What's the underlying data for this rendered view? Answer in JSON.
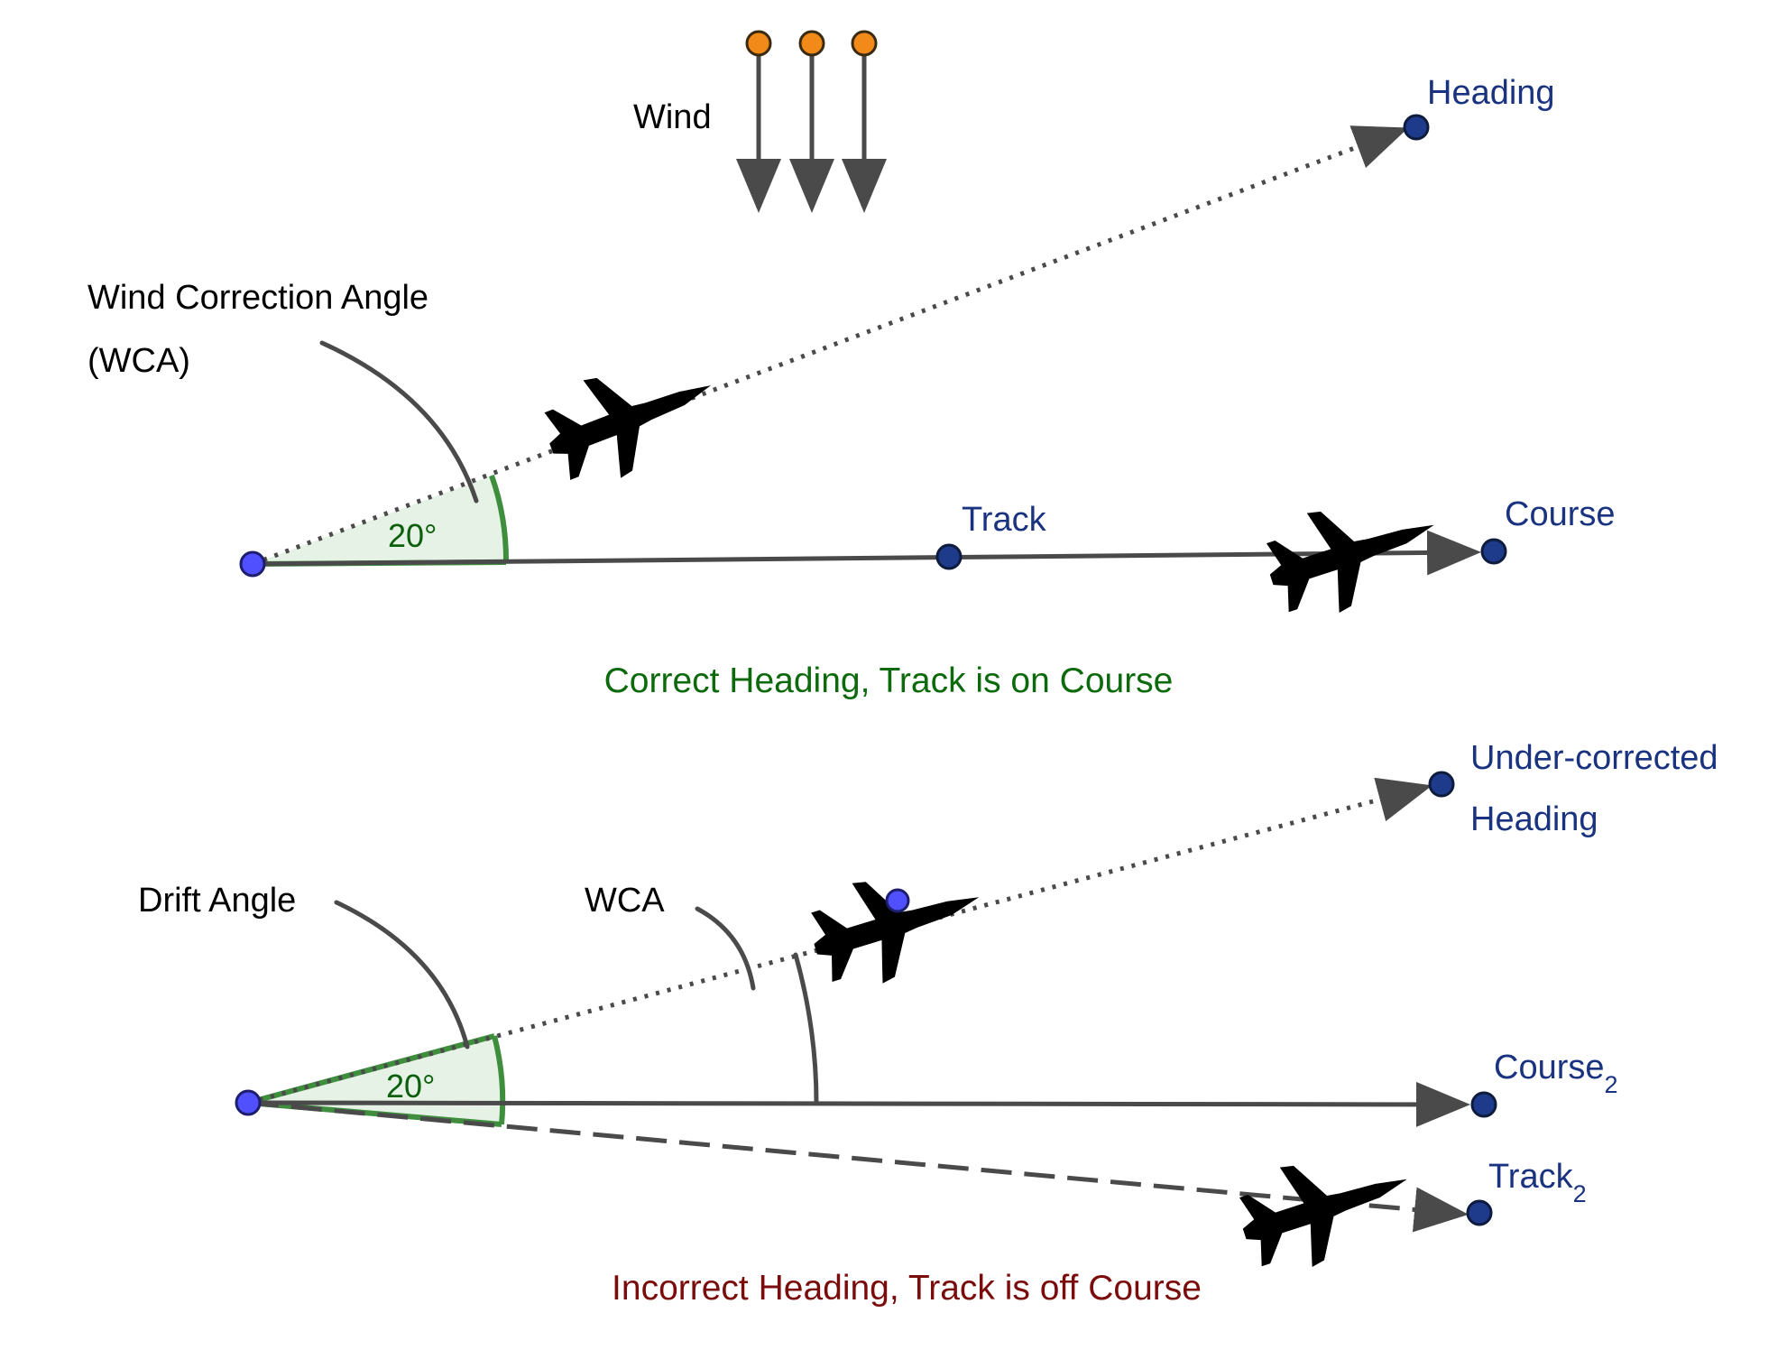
{
  "labels": {
    "wind": "Wind",
    "heading": "Heading",
    "wca_line1": "Wind Correction Angle",
    "wca_line2": "(WCA)",
    "angle_top": "20°",
    "track": "Track",
    "course": "Course",
    "caption_top": "Correct Heading, Track is on Course",
    "under_corrected_line1": "Under-corrected",
    "under_corrected_line2": "Heading",
    "drift_angle": "Drift Angle",
    "wca_short": "WCA",
    "angle_bottom": "20°",
    "course2": "Course",
    "course2_sub": "2",
    "track2": "Track",
    "track2_sub": "2",
    "caption_bottom": "Incorrect Heading, Track is off Course"
  },
  "colors": {
    "caption_correct": "#0c6a0c",
    "caption_incorrect": "#7a0c0c",
    "label_blue": "#1a3380",
    "angle_green": "#3e8e3e",
    "wind_point": "#f28a1a",
    "origin_point": "#5050ff",
    "end_point": "#1e3a8a"
  },
  "icons": [
    "airplane-icon",
    "wind-arrow-icon",
    "point-icon"
  ]
}
